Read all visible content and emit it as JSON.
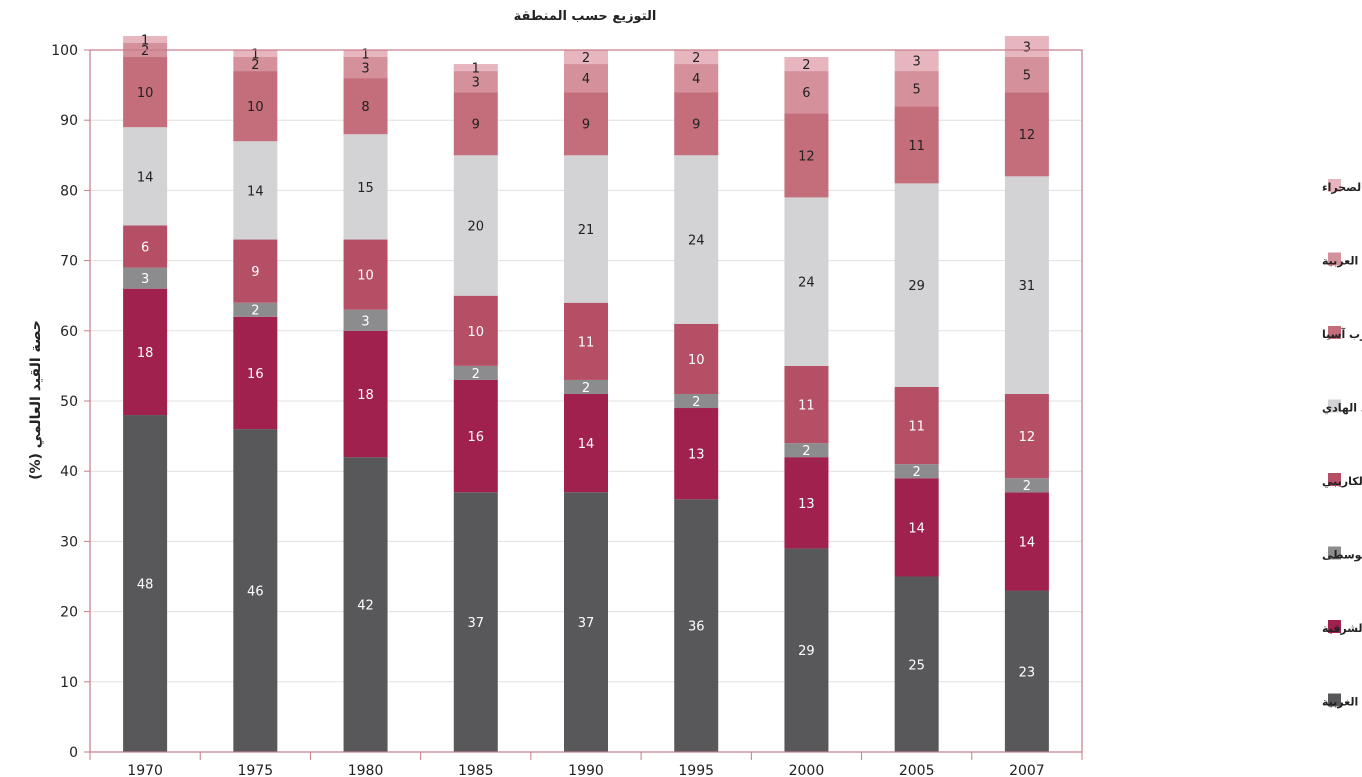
{
  "chart_data": {
    "type": "bar",
    "stacked": true,
    "title": "التوزيع حسب المنطقة",
    "ylabel": "حصة القيد العالمي (%)",
    "xlabel": "",
    "ylim": [
      0,
      100
    ],
    "yticks": [
      0,
      10,
      20,
      30,
      40,
      50,
      60,
      70,
      80,
      90,
      100
    ],
    "grid": true,
    "legend_position": "right",
    "categories": [
      "1970",
      "1975",
      "1980",
      "1985",
      "1990",
      "1995",
      "2000",
      "2005",
      "2007"
    ],
    "series": [
      {
        "name": "أمريكا الشمالية و أوروبا الغربية",
        "color": "#58585a",
        "values": [
          48,
          46,
          42,
          37,
          37,
          36,
          29,
          25,
          23
        ],
        "labels": [
          "48",
          "46",
          "42",
          "37",
          "37",
          "36",
          "29",
          "25",
          "23"
        ]
      },
      {
        "name": "أوروبا الوسطى و الشرقية",
        "color": "#a0204e",
        "values": [
          18,
          16,
          18,
          16,
          14,
          13,
          13,
          14,
          14
        ],
        "labels": [
          "18",
          "16",
          "18",
          "16",
          "14",
          "13",
          "13",
          "14",
          "14"
        ]
      },
      {
        "name": "آسيا الوسطى",
        "color": "#8c8c8e",
        "values": [
          3,
          2,
          3,
          2,
          2,
          2,
          2,
          2,
          2
        ],
        "labels": [
          "3",
          "2",
          "3",
          "2",
          "2",
          "2",
          "2",
          "2",
          "2"
        ]
      },
      {
        "name": "أمريكا اللاتينية و الكاريبي",
        "color": "#b44f66",
        "values": [
          6,
          9,
          10,
          10,
          11,
          10,
          11,
          11,
          12
        ],
        "labels": [
          "6",
          "9",
          "10",
          "10",
          "11",
          "10",
          "11",
          "11",
          "12"
        ]
      },
      {
        "name": "شرق آسيا و المحيط الهادي",
        "color": "#d3d3d5",
        "values": [
          14,
          14,
          15,
          20,
          21,
          24,
          24,
          29,
          31
        ],
        "labels": [
          "14",
          "14",
          "15",
          "20",
          "21",
          "24",
          "24",
          "29",
          "31"
        ]
      },
      {
        "name": "جنوب و غرب آسيا",
        "color": "#c46e7c",
        "values": [
          10,
          10,
          8,
          9,
          9,
          9,
          12,
          11,
          12
        ],
        "labels": [
          "10",
          "10",
          "8",
          "9",
          "9",
          "9",
          "12",
          "11",
          "12"
        ]
      },
      {
        "name": "الدول العربية",
        "color": "#d4919b",
        "values": [
          2,
          2,
          3,
          3,
          4,
          4,
          6,
          5,
          5
        ],
        "labels": [
          "2",
          "2",
          "3",
          "3",
          "4",
          "4",
          "6",
          "5",
          "5"
        ]
      },
      {
        "name": "أفريقيا جنوب الصحراء",
        "color": "#e6b5bd",
        "values": [
          1,
          1,
          1,
          1,
          2,
          2,
          2,
          3,
          3
        ],
        "labels": [
          "1",
          "1",
          "1",
          "1",
          "2",
          "2",
          "2",
          "3",
          "3"
        ]
      }
    ]
  }
}
